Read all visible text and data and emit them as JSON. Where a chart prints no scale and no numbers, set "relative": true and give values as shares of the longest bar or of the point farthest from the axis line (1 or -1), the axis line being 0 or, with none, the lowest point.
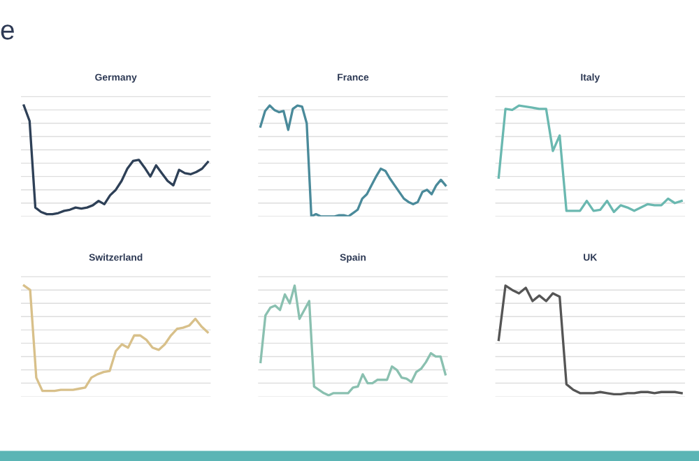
{
  "chart_data": [
    {
      "type": "line",
      "title": "Germany",
      "relative": true,
      "grid": "y",
      "annotations": [
        "e"
      ],
      "categories": [
        null,
        null,
        null,
        null,
        null,
        null,
        null,
        null,
        null,
        null,
        null,
        null,
        null,
        null,
        null,
        null,
        null,
        null,
        null,
        null,
        null,
        null,
        null,
        null,
        null,
        null,
        null,
        null,
        null,
        null,
        null,
        null,
        null
      ],
      "series": [
        {
          "color": "#2e4057",
          "values": [
            1.0,
            0.86,
            0.08,
            0.04,
            0.02,
            0.02,
            0.03,
            0.05,
            0.06,
            0.08,
            0.07,
            0.08,
            0.1,
            0.14,
            0.11,
            0.19,
            0.24,
            0.32,
            0.43,
            0.5,
            0.51,
            0.44,
            0.36,
            0.46,
            0.39,
            0.32,
            0.28,
            0.42,
            0.39,
            0.38,
            0.4,
            0.43,
            0.49
          ]
        }
      ]
    },
    {
      "type": "line",
      "title": "France",
      "relative": true,
      "grid": "y",
      "categories": [
        null,
        null,
        null,
        null,
        null,
        null,
        null,
        null,
        null,
        null,
        null,
        null,
        null,
        null,
        null,
        null,
        null,
        null,
        null,
        null,
        null,
        null,
        null,
        null,
        null,
        null,
        null,
        null,
        null,
        null,
        null,
        null,
        null,
        null,
        null,
        null,
        null,
        null,
        null,
        null,
        null
      ],
      "series": [
        {
          "color": "#4a8a9a",
          "values": [
            0.81,
            0.95,
            1.0,
            0.96,
            0.94,
            0.95,
            0.78,
            0.97,
            1.0,
            0.99,
            0.84,
            0,
            0.02,
            0,
            0,
            0,
            0,
            0.01,
            0.01,
            0,
            0.03,
            0.06,
            0.16,
            0.2,
            0.28,
            0.36,
            0.43,
            0.41,
            0.34,
            0.28,
            0.22,
            0.16,
            0.13,
            0.11,
            0.13,
            0.22,
            0.24,
            0.2,
            0.28,
            0.33,
            0.28
          ]
        }
      ]
    },
    {
      "type": "line",
      "title": "Italy",
      "relative": true,
      "grid": "y",
      "categories": [
        null,
        null,
        null,
        null,
        null,
        null,
        null,
        null,
        null,
        null,
        null,
        null,
        null,
        null,
        null,
        null,
        null,
        null,
        null,
        null,
        null,
        null,
        null,
        null,
        null,
        null,
        null,
        null
      ],
      "series": [
        {
          "color": "#6ab8b0",
          "values": [
            0.35,
            0.97,
            0.96,
            1.0,
            0.99,
            0.98,
            0.97,
            0.97,
            0.59,
            0.73,
            0.05,
            0.05,
            0.05,
            0.14,
            0.05,
            0.06,
            0.14,
            0.04,
            0.1,
            0.08,
            0.05,
            0.08,
            0.11,
            0.1,
            0.1,
            0.16,
            0.12,
            0.14
          ]
        }
      ]
    },
    {
      "type": "line",
      "title": "Switzerland",
      "relative": true,
      "grid": "y",
      "categories": [
        null,
        null,
        null,
        null,
        null,
        null,
        null,
        null,
        null,
        null,
        null,
        null,
        null,
        null,
        null,
        null,
        null,
        null,
        null,
        null,
        null,
        null,
        null,
        null,
        null,
        null,
        null,
        null,
        null,
        null,
        null
      ],
      "series": [
        {
          "color": "#d8c08a",
          "values": [
            1.0,
            0.96,
            0.17,
            0.05,
            0.05,
            0.05,
            0.06,
            0.06,
            0.06,
            0.07,
            0.08,
            0.17,
            0.2,
            0.22,
            0.23,
            0.41,
            0.47,
            0.44,
            0.55,
            0.55,
            0.51,
            0.44,
            0.42,
            0.47,
            0.55,
            0.61,
            0.62,
            0.64,
            0.7,
            0.63,
            0.58
          ]
        }
      ]
    },
    {
      "type": "line",
      "title": "Spain",
      "relative": true,
      "grid": "y",
      "categories": [
        null,
        null,
        null,
        null,
        null,
        null,
        null,
        null,
        null,
        null,
        null,
        null,
        null,
        null,
        null,
        null,
        null,
        null,
        null,
        null,
        null,
        null,
        null,
        null,
        null,
        null,
        null,
        null,
        null,
        null,
        null,
        null,
        null,
        null,
        null,
        null,
        null,
        null,
        null
      ],
      "series": [
        {
          "color": "#8ac0b0",
          "values": [
            0.31,
            0.73,
            0.8,
            0.82,
            0.78,
            0.92,
            0.84,
            1.0,
            0.7,
            0.78,
            0.86,
            0.09,
            0.06,
            0.03,
            0.01,
            0.03,
            0.03,
            0.03,
            0.03,
            0.08,
            0.09,
            0.2,
            0.12,
            0.12,
            0.15,
            0.15,
            0.15,
            0.27,
            0.24,
            0.17,
            0.16,
            0.13,
            0.22,
            0.25,
            0.31,
            0.39,
            0.36,
            0.36,
            0.2
          ]
        }
      ]
    },
    {
      "type": "line",
      "title": "UK",
      "relative": true,
      "grid": "y",
      "categories": [
        null,
        null,
        null,
        null,
        null,
        null,
        null,
        null,
        null,
        null,
        null,
        null,
        null,
        null,
        null,
        null,
        null,
        null,
        null,
        null,
        null,
        null,
        null,
        null,
        null,
        null,
        null,
        null
      ],
      "series": [
        {
          "color": "#555555",
          "values": [
            0.51,
            1.0,
            0.96,
            0.93,
            0.98,
            0.86,
            0.91,
            0.86,
            0.93,
            0.9,
            0.11,
            0.06,
            0.03,
            0.03,
            0.03,
            0.04,
            0.03,
            0.02,
            0.02,
            0.03,
            0.03,
            0.04,
            0.04,
            0.03,
            0.04,
            0.04,
            0.04,
            0.03
          ]
        }
      ]
    }
  ]
}
